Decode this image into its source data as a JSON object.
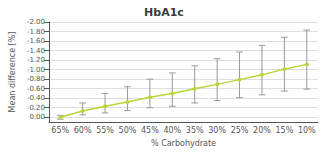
{
  "chart_data": {
    "type": "line",
    "title": "HbA1c",
    "xlabel": "% Carbohydrate",
    "ylabel": "Mean difference [%]",
    "categories": [
      "65%",
      "60%",
      "55%",
      "50%",
      "45%",
      "40%",
      "35%",
      "30%",
      "25%",
      "20%",
      "15%",
      "10%"
    ],
    "values": [
      0.0,
      -0.13,
      -0.23,
      -0.32,
      -0.42,
      -0.5,
      -0.6,
      -0.69,
      -0.79,
      -0.89,
      -1.01,
      -1.11
    ],
    "error_plus": [
      0.04,
      0.08,
      0.14,
      0.18,
      0.22,
      0.27,
      0.3,
      0.34,
      0.38,
      0.42,
      0.46,
      0.52
    ],
    "error_minus": [
      0.04,
      0.17,
      0.27,
      0.32,
      0.38,
      0.43,
      0.48,
      0.54,
      0.58,
      0.62,
      0.67,
      0.72
    ],
    "ylim": [
      0.1,
      -2.0
    ],
    "yticks": [
      {
        "value": 0.0,
        "label": "0.00"
      },
      {
        "value": -0.2,
        "label": "-0.20"
      },
      {
        "value": -0.4,
        "label": "-0.40"
      },
      {
        "value": -0.6,
        "label": "-0.60"
      },
      {
        "value": -0.8,
        "label": "-0.80"
      },
      {
        "value": -1.0,
        "label": "-1.00"
      },
      {
        "value": -1.2,
        "label": "-1.20"
      },
      {
        "value": -1.4,
        "label": "-1.40"
      },
      {
        "value": -1.6,
        "label": "-1.60"
      },
      {
        "value": -1.8,
        "label": "-1.80"
      },
      {
        "value": -2.0,
        "label": "-2.00"
      }
    ],
    "grid": true,
    "marker": "circle"
  }
}
